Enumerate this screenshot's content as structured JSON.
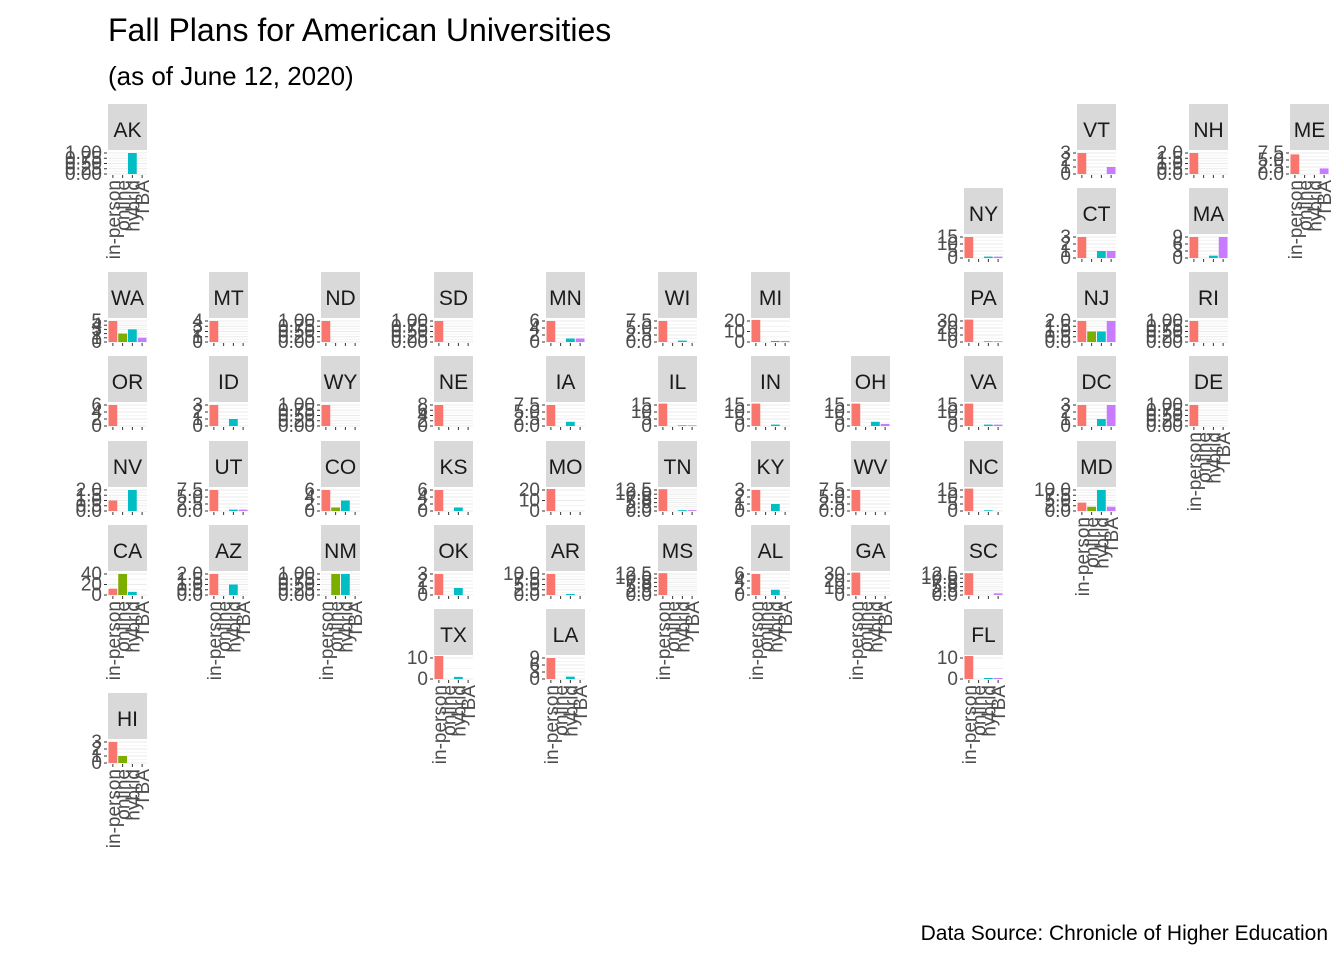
{
  "title": "Fall Plans for American Universities",
  "subtitle": "(as of June 12, 2020)",
  "caption": "Data Source: Chronicle of Higher Education",
  "colors": {
    "in-person": "#F8766D",
    "online": "#7CAE00",
    "hybrid": "#00BFC4",
    "TBA": "#C77CFF",
    "strip": "#D9D9D9",
    "grid": "#EBEBEB",
    "axis_text": "#4D4D4D"
  },
  "chart_data": {
    "type": "bar",
    "layout": "facet geofacet grid of US states",
    "categories": [
      "in-person",
      "online",
      "hybrid",
      "TBA"
    ],
    "grid": true,
    "panels": [
      {
        "state": "AK",
        "ticks": [
          "0.00",
          "0.25",
          "0.50",
          "0.75",
          "1.00"
        ],
        "ymax": 1,
        "values": [
          0,
          0,
          1,
          0
        ]
      },
      {
        "state": "VT",
        "ticks": [
          "0",
          "1",
          "2",
          "3"
        ],
        "ymax": 3,
        "values": [
          3,
          0,
          0,
          1
        ]
      },
      {
        "state": "NH",
        "ticks": [
          "0.0",
          "0.5",
          "1.0",
          "1.5",
          "2.0"
        ],
        "ymax": 2,
        "values": [
          2,
          0,
          0,
          0
        ]
      },
      {
        "state": "ME",
        "ticks": [
          "0.0",
          "2.5",
          "5.0",
          "7.5"
        ],
        "ymax": 7.5,
        "values": [
          7,
          0,
          0,
          2
        ]
      },
      {
        "state": "NY",
        "ticks": [
          "0",
          "5",
          "10",
          "15"
        ],
        "ymax": 15,
        "values": [
          15,
          0,
          1,
          1
        ]
      },
      {
        "state": "CT",
        "ticks": [
          "0",
          "1",
          "2",
          "3"
        ],
        "ymax": 3,
        "values": [
          3,
          0,
          1,
          1
        ]
      },
      {
        "state": "MA",
        "ticks": [
          "0",
          "3",
          "6",
          "9"
        ],
        "ymax": 9,
        "values": [
          9,
          0,
          1,
          9
        ]
      },
      {
        "state": "WA",
        "ticks": [
          "0",
          "1",
          "2",
          "3",
          "4",
          "5"
        ],
        "ymax": 5,
        "values": [
          5,
          2,
          3,
          1
        ]
      },
      {
        "state": "MT",
        "ticks": [
          "0",
          "1",
          "2",
          "3",
          "4"
        ],
        "ymax": 4,
        "values": [
          4,
          0,
          0,
          0
        ]
      },
      {
        "state": "ND",
        "ticks": [
          "0.00",
          "0.25",
          "0.50",
          "0.75",
          "1.00"
        ],
        "ymax": 1,
        "values": [
          1,
          0,
          0,
          0
        ]
      },
      {
        "state": "SD",
        "ticks": [
          "0.00",
          "0.25",
          "0.50",
          "0.75",
          "1.00"
        ],
        "ymax": 1,
        "values": [
          1,
          0,
          0,
          0
        ]
      },
      {
        "state": "MN",
        "ticks": [
          "0",
          "2",
          "4",
          "6"
        ],
        "ymax": 6,
        "values": [
          6,
          0,
          1,
          1
        ]
      },
      {
        "state": "WI",
        "ticks": [
          "0.0",
          "2.5",
          "5.0",
          "7.5"
        ],
        "ymax": 7.5,
        "values": [
          7.5,
          0,
          0.5,
          0
        ]
      },
      {
        "state": "MI",
        "ticks": [
          "0",
          "10",
          "20"
        ],
        "ymax": 20,
        "values": [
          21,
          0,
          1,
          1
        ]
      },
      {
        "state": "PA",
        "ticks": [
          "0",
          "10",
          "20",
          "30"
        ],
        "ymax": 30,
        "values": [
          32,
          0,
          1,
          1
        ]
      },
      {
        "state": "NJ",
        "ticks": [
          "0.0",
          "0.5",
          "1.0",
          "1.5",
          "2.0"
        ],
        "ymax": 2,
        "values": [
          2,
          1,
          1,
          2
        ]
      },
      {
        "state": "RI",
        "ticks": [
          "0.00",
          "0.25",
          "0.50",
          "0.75",
          "1.00"
        ],
        "ymax": 1,
        "values": [
          1,
          0,
          0,
          0
        ]
      },
      {
        "state": "OR",
        "ticks": [
          "0",
          "2",
          "4",
          "6"
        ],
        "ymax": 6,
        "values": [
          6,
          0,
          0,
          0
        ]
      },
      {
        "state": "ID",
        "ticks": [
          "0",
          "1",
          "2",
          "3"
        ],
        "ymax": 3,
        "values": [
          3,
          0,
          1,
          0
        ]
      },
      {
        "state": "WY",
        "ticks": [
          "0.00",
          "0.25",
          "0.50",
          "0.75",
          "1.00"
        ],
        "ymax": 1,
        "values": [
          1,
          0,
          0,
          0
        ]
      },
      {
        "state": "NE",
        "ticks": [
          "0",
          "2",
          "4",
          "6",
          "8"
        ],
        "ymax": 8,
        "values": [
          8,
          0,
          0,
          0
        ]
      },
      {
        "state": "IA",
        "ticks": [
          "0.0",
          "2.5",
          "5.0",
          "7.5"
        ],
        "ymax": 7.5,
        "values": [
          7.5,
          0,
          1.5,
          0
        ]
      },
      {
        "state": "IL",
        "ticks": [
          "0",
          "5",
          "10",
          "15"
        ],
        "ymax": 15,
        "values": [
          16,
          0,
          0.5,
          0.5
        ]
      },
      {
        "state": "IN",
        "ticks": [
          "0",
          "5",
          "10",
          "15"
        ],
        "ymax": 15,
        "values": [
          16,
          0,
          1,
          0
        ]
      },
      {
        "state": "OH",
        "ticks": [
          "0",
          "5",
          "10",
          "15"
        ],
        "ymax": 15,
        "values": [
          16,
          0,
          3,
          1.5
        ]
      },
      {
        "state": "VA",
        "ticks": [
          "0",
          "5",
          "10",
          "15"
        ],
        "ymax": 15,
        "values": [
          16,
          0,
          1,
          1
        ]
      },
      {
        "state": "DC",
        "ticks": [
          "0",
          "1",
          "2",
          "3"
        ],
        "ymax": 3,
        "values": [
          3,
          0,
          1,
          3
        ]
      },
      {
        "state": "DE",
        "ticks": [
          "0.00",
          "0.25",
          "0.50",
          "0.75",
          "1.00"
        ],
        "ymax": 1,
        "values": [
          1,
          0,
          0,
          0
        ]
      },
      {
        "state": "NV",
        "ticks": [
          "0.0",
          "0.5",
          "1.0",
          "1.5",
          "2.0"
        ],
        "ymax": 2,
        "values": [
          1,
          0,
          2,
          0
        ]
      },
      {
        "state": "UT",
        "ticks": [
          "0.0",
          "2.5",
          "5.0",
          "7.5"
        ],
        "ymax": 7.5,
        "values": [
          7.5,
          0,
          0.5,
          0.5
        ]
      },
      {
        "state": "CO",
        "ticks": [
          "0",
          "2",
          "4",
          "6"
        ],
        "ymax": 6,
        "values": [
          6,
          1,
          3,
          0
        ]
      },
      {
        "state": "KS",
        "ticks": [
          "0",
          "2",
          "4",
          "6"
        ],
        "ymax": 6,
        "values": [
          6,
          0,
          1,
          0
        ]
      },
      {
        "state": "MO",
        "ticks": [
          "0",
          "10",
          "20"
        ],
        "ymax": 20,
        "values": [
          21,
          0,
          0,
          0
        ]
      },
      {
        "state": "TN",
        "ticks": [
          "0.0",
          "2.5",
          "5.0",
          "7.5",
          "10.0",
          "12.5"
        ],
        "ymax": 12.5,
        "values": [
          13,
          0,
          0.5,
          0.5
        ]
      },
      {
        "state": "KY",
        "ticks": [
          "0",
          "1",
          "2",
          "3"
        ],
        "ymax": 3,
        "values": [
          3,
          0,
          1,
          0
        ]
      },
      {
        "state": "WV",
        "ticks": [
          "0.0",
          "2.5",
          "5.0",
          "7.5"
        ],
        "ymax": 7.5,
        "values": [
          7.5,
          0,
          0,
          0
        ]
      },
      {
        "state": "NC",
        "ticks": [
          "0",
          "5",
          "10",
          "15"
        ],
        "ymax": 15,
        "values": [
          16,
          0,
          0.5,
          0
        ]
      },
      {
        "state": "MD",
        "ticks": [
          "0.0",
          "2.5",
          "5.0",
          "7.5",
          "10.0"
        ],
        "ymax": 10,
        "values": [
          4,
          2,
          10,
          2
        ]
      },
      {
        "state": "CA",
        "ticks": [
          "0",
          "20",
          "40"
        ],
        "ymax": 40,
        "values": [
          12,
          40,
          6,
          0
        ]
      },
      {
        "state": "AZ",
        "ticks": [
          "0.0",
          "0.5",
          "1.0",
          "1.5",
          "2.0"
        ],
        "ymax": 2,
        "values": [
          2,
          0,
          1,
          0
        ]
      },
      {
        "state": "NM",
        "ticks": [
          "0.00",
          "0.25",
          "0.50",
          "0.75",
          "1.00"
        ],
        "ymax": 1,
        "values": [
          0,
          1,
          1,
          0
        ]
      },
      {
        "state": "OK",
        "ticks": [
          "0",
          "1",
          "2",
          "3"
        ],
        "ymax": 3,
        "values": [
          3,
          0,
          1,
          0
        ]
      },
      {
        "state": "AR",
        "ticks": [
          "0.0",
          "2.5",
          "5.0",
          "7.5",
          "10.0"
        ],
        "ymax": 10,
        "values": [
          10,
          0,
          0.5,
          0
        ]
      },
      {
        "state": "MS",
        "ticks": [
          "0.0",
          "2.5",
          "5.0",
          "7.5",
          "10.0",
          "12.5"
        ],
        "ymax": 12.5,
        "values": [
          13,
          0,
          0,
          0
        ]
      },
      {
        "state": "AL",
        "ticks": [
          "0",
          "2",
          "4",
          "6"
        ],
        "ymax": 6,
        "values": [
          6,
          0,
          1.5,
          0
        ]
      },
      {
        "state": "GA",
        "ticks": [
          "0",
          "10",
          "20",
          "30"
        ],
        "ymax": 30,
        "values": [
          32,
          0,
          0,
          0
        ]
      },
      {
        "state": "SC",
        "ticks": [
          "0.0",
          "2.5",
          "5.0",
          "7.5",
          "10.0",
          "12.5"
        ],
        "ymax": 12.5,
        "values": [
          13,
          0,
          0,
          1
        ]
      },
      {
        "state": "TX",
        "ticks": [
          "0",
          "10"
        ],
        "ymax": 10,
        "values": [
          14,
          0,
          1,
          0
        ]
      },
      {
        "state": "LA",
        "ticks": [
          "0",
          "3",
          "6",
          "9"
        ],
        "ymax": 9,
        "values": [
          9,
          0,
          1,
          0
        ]
      },
      {
        "state": "FL",
        "ticks": [
          "0",
          "10"
        ],
        "ymax": 10,
        "values": [
          14,
          0,
          0.5,
          0.5
        ]
      },
      {
        "state": "HI",
        "ticks": [
          "0",
          "1",
          "2",
          "3"
        ],
        "ymax": 3,
        "values": [
          3,
          1,
          0,
          0
        ]
      }
    ]
  }
}
